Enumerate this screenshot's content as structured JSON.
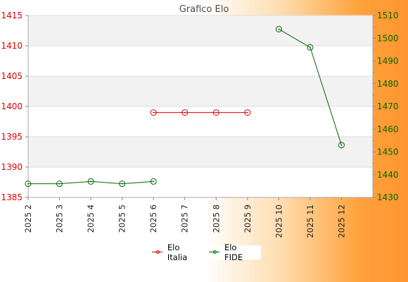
{
  "chart_data": {
    "type": "line",
    "title": "Grafico Elo",
    "categories": [
      "2025 2",
      "2025 3",
      "2025 4",
      "2025 5",
      "2025 6",
      "2025 7",
      "2025 8",
      "2025 9",
      "2025 10",
      "2025 11",
      "2025 12"
    ],
    "series": [
      {
        "name": "Elo Italia",
        "axis": "left",
        "color": "#dd0000",
        "values": [
          null,
          null,
          null,
          null,
          1399,
          1399,
          1399,
          1399,
          null,
          null,
          null
        ]
      },
      {
        "name": "Elo FIDE",
        "axis": "right",
        "color": "#006600",
        "values": [
          1436,
          1436,
          1437,
          1436,
          1437,
          null,
          null,
          null,
          1504,
          1496,
          1453
        ]
      }
    ],
    "y_left": {
      "ylim": [
        1385,
        1415
      ],
      "ticks": [
        1385,
        1390,
        1395,
        1400,
        1405,
        1410,
        1415
      ],
      "color": "#dd0000"
    },
    "y_right": {
      "ylim": [
        1430,
        1510
      ],
      "ticks": [
        1430,
        1440,
        1450,
        1460,
        1470,
        1480,
        1490,
        1500,
        1510
      ],
      "color": "#006600"
    },
    "grid": true,
    "legend": "bottom-center"
  }
}
